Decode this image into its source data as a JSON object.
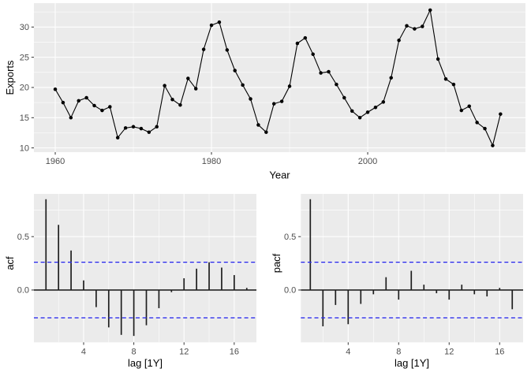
{
  "figure": {
    "description": "Time series of Exports with ACF and PACF correlogram panels",
    "background": "#ffffff"
  },
  "colors": {
    "panel_background": "#ebebeb",
    "gridline": "#ffffff",
    "series_line": "#000000",
    "series_point": "#000000",
    "bar": "#1f1f1f",
    "zero_line": "#000000",
    "confidence_line": "#2d2deb",
    "tick_mark": "#333333",
    "tick_label": "#4d4d4d",
    "axis_title": "#000000"
  },
  "chart_data": [
    {
      "id": "ts",
      "type": "line",
      "title": "",
      "xlabel": "Year",
      "ylabel": "Exports",
      "x_start": 1960,
      "x_step": 1,
      "values": [
        19.7,
        17.5,
        15.0,
        17.8,
        18.3,
        17.0,
        16.2,
        16.8,
        11.7,
        13.3,
        13.5,
        13.2,
        12.6,
        13.5,
        20.3,
        18.0,
        17.1,
        21.5,
        19.8,
        26.3,
        30.3,
        30.8,
        26.2,
        22.8,
        20.4,
        18.1,
        13.8,
        12.6,
        17.3,
        17.7,
        20.2,
        27.3,
        28.2,
        25.5,
        22.4,
        22.6,
        20.5,
        18.3,
        16.1,
        15.0,
        15.9,
        16.7,
        17.6,
        21.6,
        27.8,
        30.2,
        29.7,
        30.1,
        32.8,
        24.7,
        21.4,
        20.5,
        16.2,
        16.9,
        14.2,
        13.2,
        10.4,
        15.6
      ],
      "xlim": [
        1957.27,
        2020.2
      ],
      "ylim": [
        9.3,
        33.95
      ],
      "x_major_ticks": [
        1960,
        1980,
        2000
      ],
      "x_minor_ticks": [
        1970,
        1990,
        2010
      ],
      "y_major_ticks": [
        10,
        15,
        20,
        25,
        30
      ],
      "y_minor_ticks": [
        12.5,
        17.5,
        22.5,
        27.5,
        32.5
      ],
      "x_tick_labels": [
        "1960",
        "1980",
        "2000"
      ],
      "y_tick_labels": [
        "10",
        "15",
        "20",
        "25",
        "30"
      ],
      "grid": true,
      "legend": false
    },
    {
      "id": "acf",
      "type": "bar",
      "title": "",
      "xlabel": "lag [1Y]",
      "ylabel": "acf",
      "lags": [
        1,
        2,
        3,
        4,
        5,
        6,
        7,
        8,
        9,
        10,
        11,
        12,
        13,
        14,
        15,
        16,
        17
      ],
      "values": [
        0.85,
        0.61,
        0.37,
        0.09,
        -0.16,
        -0.35,
        -0.42,
        -0.43,
        -0.33,
        -0.17,
        -0.02,
        0.11,
        0.2,
        0.26,
        0.21,
        0.14,
        0.02
      ],
      "confidence_bounds": {
        "upper": 0.26,
        "lower": -0.26
      },
      "xlim": [
        0.04,
        17.77
      ],
      "ylim": [
        -0.49,
        0.9
      ],
      "x_major_ticks": [
        4,
        8,
        12,
        16
      ],
      "x_minor_ticks": [
        2,
        6,
        10,
        14
      ],
      "y_major_ticks": [
        0,
        0.5
      ],
      "y_minor_ticks": [
        -0.25,
        0.25,
        0.75
      ],
      "x_tick_labels": [
        "4",
        "8",
        "12",
        "16"
      ],
      "y_tick_labels": [
        "0.0",
        "0.5"
      ],
      "grid": true,
      "legend": false
    },
    {
      "id": "pacf",
      "type": "bar",
      "title": "",
      "xlabel": "lag [1Y]",
      "ylabel": "pacf",
      "lags": [
        1,
        2,
        3,
        4,
        5,
        6,
        7,
        8,
        9,
        10,
        11,
        12,
        13,
        14,
        15,
        16,
        17
      ],
      "values": [
        0.85,
        -0.34,
        -0.14,
        -0.32,
        -0.13,
        -0.04,
        0.12,
        -0.09,
        0.18,
        0.05,
        -0.03,
        -0.09,
        0.05,
        -0.04,
        -0.06,
        0.02,
        -0.18
      ],
      "confidence_bounds": {
        "upper": 0.26,
        "lower": -0.26
      },
      "xlim": [
        0.25,
        17.86
      ],
      "ylim": [
        -0.49,
        0.9
      ],
      "x_major_ticks": [
        4,
        8,
        12,
        16
      ],
      "x_minor_ticks": [
        2,
        6,
        10,
        14
      ],
      "y_major_ticks": [
        0,
        0.5
      ],
      "y_minor_ticks": [
        -0.25,
        0.25,
        0.75
      ],
      "x_tick_labels": [
        "4",
        "8",
        "12",
        "16"
      ],
      "y_tick_labels": [
        "0.0",
        "0.5"
      ],
      "grid": true,
      "legend": false
    }
  ]
}
